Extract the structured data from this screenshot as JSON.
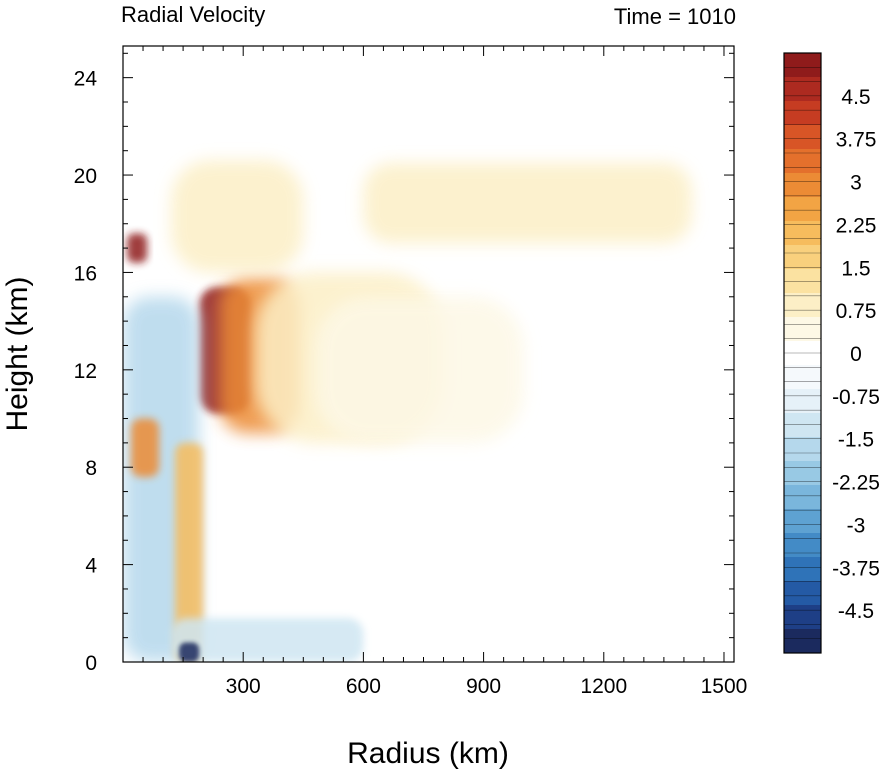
{
  "chart_data": {
    "type": "heatmap",
    "title_left": "Radial Velocity",
    "title_right": "Time = 1010",
    "xlabel": "Radius (km)",
    "ylabel": "Height (km)",
    "xlim": [
      0,
      1525
    ],
    "ylim": [
      0,
      25.3
    ],
    "x_ticks": [
      "300",
      "600",
      "900",
      "1200",
      "1500"
    ],
    "x_tick_values": [
      300,
      600,
      900,
      1200,
      1500
    ],
    "y_ticks": [
      "0",
      "4",
      "8",
      "12",
      "16",
      "20",
      "24"
    ],
    "y_tick_values": [
      0,
      4,
      8,
      12,
      16,
      20,
      24
    ],
    "colorbar": {
      "labels": [
        "4.5",
        "3.75",
        "3",
        "2.25",
        "1.5",
        "0.75",
        "0",
        "-0.75",
        "-1.5",
        "-2.25",
        "-3",
        "-3.75",
        "-4.5"
      ],
      "label_values": [
        4.5,
        3.75,
        3,
        2.25,
        1.5,
        0.75,
        0,
        -0.75,
        -1.5,
        -2.25,
        -3,
        -3.75,
        -4.5
      ],
      "levels_min": -5.25,
      "levels_max": 5.25,
      "level_step": 0.25,
      "colors": [
        "#1b2a5e",
        "#1e3f86",
        "#245aa5",
        "#2f73b8",
        "#438bc6",
        "#5ea2d2",
        "#7ab6dc",
        "#98c9e4",
        "#b5d8ec",
        "#cfe6f2",
        "#e6f1f8",
        "#f5f9fc",
        "#ffffff",
        "#fdf8e6",
        "#fcefc6",
        "#fbe2a1",
        "#f9d07d",
        "#f6bc5d",
        "#f2a444",
        "#ec8b35",
        "#e4702c",
        "#d85526",
        "#c63c22",
        "#ad2a20",
        "#8f1b1b"
      ]
    },
    "features": [
      {
        "name": "upper-outflow-core",
        "x": [
          190,
          320
        ],
        "y": [
          10.2,
          15.4
        ],
        "value": 5.5
      },
      {
        "name": "upper-outflow-shoulder",
        "x": [
          240,
          440
        ],
        "y": [
          9.4,
          15.8
        ],
        "value": 3.0
      },
      {
        "name": "upper-outflow-tail",
        "x": [
          330,
          800
        ],
        "y": [
          9.0,
          16.0
        ],
        "value": 0.9
      },
      {
        "name": "upper-outflow-faint",
        "x": [
          480,
          1000
        ],
        "y": [
          9.0,
          15.0
        ],
        "value": 0.4
      },
      {
        "name": "top-layer-outflow",
        "x": [
          600,
          1420
        ],
        "y": [
          17.2,
          20.5
        ],
        "value": 0.7
      },
      {
        "name": "tropopause-bands",
        "x": [
          120,
          450
        ],
        "y": [
          16.0,
          20.6
        ],
        "value": 0.8
      },
      {
        "name": "eyewall-inflow",
        "x": [
          0,
          190
        ],
        "y": [
          0,
          15.0
        ],
        "value": -1.5
      },
      {
        "name": "eyewall-outflow-streaks",
        "x": [
          130,
          200
        ],
        "y": [
          0,
          9.0
        ],
        "value": 2.0
      },
      {
        "name": "inner-core-outflow",
        "x": [
          10,
          60
        ],
        "y": [
          16.4,
          17.6
        ],
        "value": 5.0
      },
      {
        "name": "lower-core-outflow",
        "x": [
          20,
          90
        ],
        "y": [
          7.6,
          10.0
        ],
        "value": 3.0
      },
      {
        "name": "boundary-layer-inflow",
        "x": [
          120,
          600
        ],
        "y": [
          0,
          1.8
        ],
        "value": -1.2
      },
      {
        "name": "near-surface-inflow-core",
        "x": [
          140,
          190
        ],
        "y": [
          0,
          0.8
        ],
        "value": -5.0
      }
    ]
  }
}
